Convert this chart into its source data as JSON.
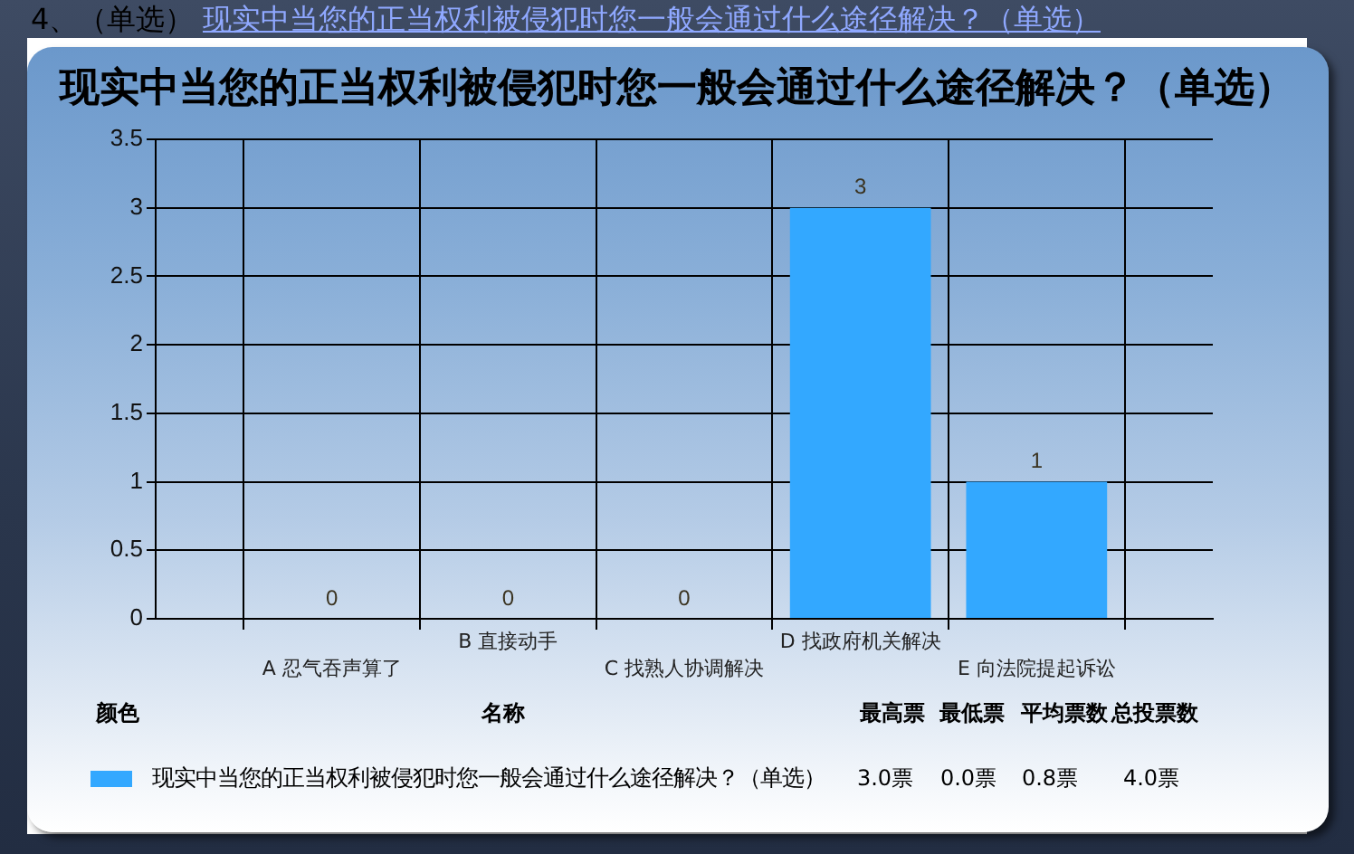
{
  "chart_data": {
    "type": "bar",
    "title": "现实中当您的正当权利被侵犯时您一般会通过什么途径解决？（单选）",
    "categories": [
      "A 忍气吞声算了",
      "B 直接动手",
      "C 找熟人协调解决",
      "D 找政府机关解决",
      "E 向法院提起诉讼"
    ],
    "series": [
      {
        "name": "现实中当您的正当权利被侵犯时您一般会通过什么途径解决？（单选）",
        "color": "#33a8ff",
        "values": [
          0,
          0,
          0,
          3,
          1
        ]
      }
    ],
    "ylim": [
      0,
      3.5
    ],
    "yticks": [
      0,
      0.5,
      1,
      1.5,
      2,
      2.5,
      3,
      3.5
    ],
    "grid": true,
    "legend": "bottom",
    "data_labels": true,
    "annotations": [
      "4、（单选）",
      "现实中当您的正当权利被侵犯时您一般会通过什么途径解决？（单选）",
      "颜色",
      "名称",
      "最高票",
      "最低票",
      "平均票数",
      "总投票数",
      "3.0票",
      "0.0票",
      "0.8票",
      "4.0票"
    ]
  }
}
